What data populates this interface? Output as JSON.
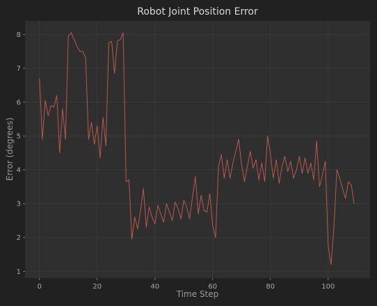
{
  "chart_data": {
    "type": "line",
    "title": "Robot Joint Position Error",
    "xlabel": "Time Step",
    "ylabel": "Error (degrees)",
    "xlim": [
      -5,
      114.5
    ],
    "ylim": [
      0.8,
      8.4
    ],
    "xticks": [
      0,
      20,
      40,
      60,
      80,
      100
    ],
    "yticks": [
      1,
      2,
      3,
      4,
      5,
      6,
      7,
      8
    ],
    "grid": true,
    "colors": {
      "background": "#212121",
      "plot_area": "#2f2f2f",
      "grid": "#3c3c3c",
      "line": "#b85a4d"
    },
    "series": [
      {
        "x": [
          0,
          1,
          2,
          3,
          4,
          5,
          6,
          7,
          8,
          9,
          10,
          11,
          12,
          13,
          14,
          15,
          16,
          17,
          18,
          19,
          20,
          21,
          22,
          23,
          24,
          25,
          26,
          27,
          28,
          29,
          30,
          31,
          32,
          33,
          34,
          35,
          36,
          37,
          38,
          39,
          40,
          41,
          42,
          43,
          44,
          45,
          46,
          47,
          48,
          49,
          50,
          51,
          52,
          53,
          54,
          55,
          56,
          57,
          58,
          59,
          60,
          61,
          62,
          63,
          64,
          65,
          66,
          67,
          68,
          69,
          70,
          71,
          72,
          73,
          74,
          75,
          76,
          77,
          78,
          79,
          80,
          81,
          82,
          83,
          84,
          85,
          86,
          87,
          88,
          89,
          90,
          91,
          92,
          93,
          94,
          95,
          96,
          97,
          98,
          99,
          100,
          101,
          102,
          103,
          104,
          105,
          106,
          107,
          108,
          109
        ],
        "values": [
          6.7,
          4.9,
          6.05,
          5.6,
          5.9,
          5.85,
          6.2,
          4.5,
          5.8,
          4.9,
          7.95,
          8.05,
          7.85,
          7.65,
          7.5,
          7.5,
          7.3,
          4.9,
          5.4,
          4.75,
          5.3,
          4.35,
          5.55,
          4.7,
          7.75,
          7.8,
          6.85,
          7.8,
          7.85,
          8.05,
          3.65,
          3.7,
          1.95,
          2.6,
          2.25,
          2.8,
          3.45,
          2.3,
          2.9,
          2.6,
          2.4,
          2.95,
          2.7,
          2.45,
          3.0,
          2.75,
          2.5,
          3.05,
          2.85,
          2.55,
          3.1,
          2.9,
          2.55,
          3.2,
          3.8,
          2.7,
          3.25,
          2.8,
          2.75,
          3.3,
          2.35,
          2.0,
          4.1,
          4.45,
          3.75,
          4.3,
          3.75,
          4.2,
          4.55,
          4.9,
          4.15,
          3.65,
          4.1,
          4.55,
          4.05,
          4.3,
          3.7,
          4.2,
          3.65,
          5.0,
          4.45,
          3.75,
          4.3,
          3.6,
          4.1,
          4.4,
          3.95,
          4.25,
          3.75,
          4.0,
          4.4,
          3.9,
          4.35,
          3.9,
          4.2,
          3.7,
          4.85,
          3.5,
          3.85,
          4.25,
          1.75,
          1.2,
          2.3,
          4.0,
          3.75,
          3.45,
          3.15,
          3.65,
          3.55,
          3.0
        ]
      }
    ]
  }
}
